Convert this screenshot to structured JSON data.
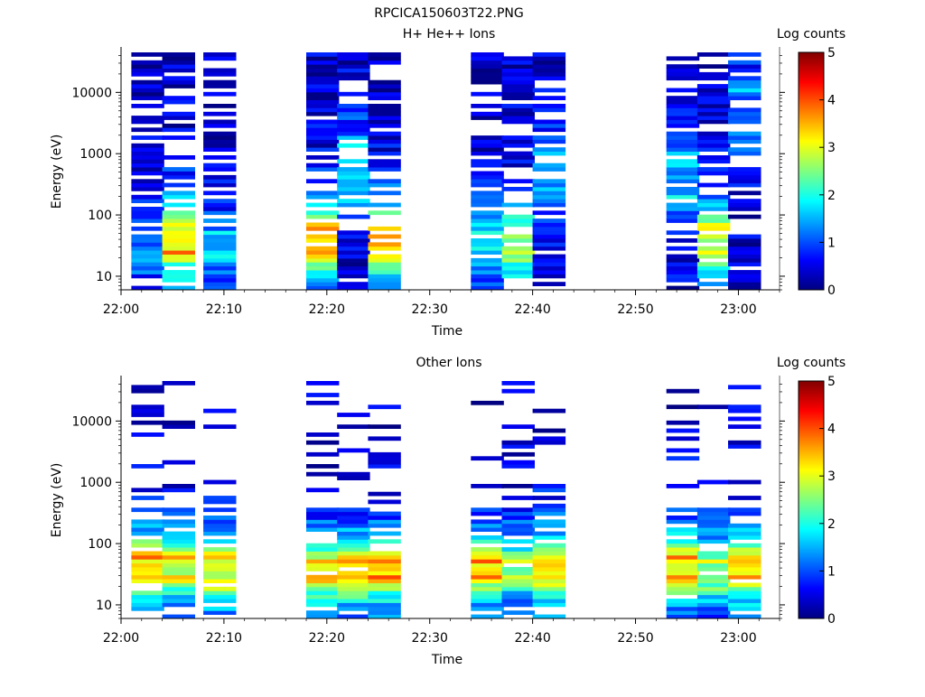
{
  "file_title": "RPCICA150603T22.PNG",
  "chart_data": [
    {
      "type": "heatmap",
      "title": "H+ He++ Ions",
      "xlabel": "Time",
      "ylabel": "Energy (eV)",
      "colorbar_label": "Log counts",
      "y_scale": "log",
      "ylim": [
        6,
        45000
      ],
      "xlim_minutes": [
        0,
        64
      ],
      "x_tick_labels": [
        "22:00",
        "22:10",
        "22:20",
        "22:30",
        "22:40",
        "22:50",
        "23:00"
      ],
      "y_tick_labels": [
        "10",
        "100",
        "1000",
        "10000"
      ],
      "y_tick_values": [
        10,
        100,
        1000,
        10000
      ],
      "colorbar_range": [
        0,
        5
      ],
      "colorbar_tick_labels": [
        "0",
        "1",
        "2",
        "3",
        "4",
        "5"
      ],
      "time_columns": [
        {
          "time": "22:01",
          "high_count_band_eV": [
            25,
            40
          ],
          "peak_log_counts": 1.3
        },
        {
          "time": "22:04",
          "high_count_band_eV": [
            25,
            70
          ],
          "peak_log_counts": 3.2
        },
        {
          "time": "22:08",
          "high_count_band_eV": [
            25,
            40
          ],
          "peak_log_counts": 1.5
        },
        {
          "time": "22:18",
          "high_count_band_eV": [
            25,
            60
          ],
          "peak_log_counts": 3.5
        },
        {
          "time": "22:21",
          "high_count_band_eV": [
            300,
            900
          ],
          "peak_log_counts": 1.8
        },
        {
          "time": "22:24",
          "high_count_band_eV": [
            25,
            50
          ],
          "peak_log_counts": 3.7
        },
        {
          "time": "22:34",
          "high_count_band_eV": [
            30,
            50
          ],
          "peak_log_counts": 1.8
        },
        {
          "time": "22:37",
          "high_count_band_eV": [
            25,
            50
          ],
          "peak_log_counts": 2.8
        },
        {
          "time": "22:40",
          "high_count_band_eV": [
            300,
            800
          ],
          "peak_log_counts": 1.6
        },
        {
          "time": "22:53",
          "high_count_band_eV": [
            200,
            600
          ],
          "peak_log_counts": 1.6
        },
        {
          "time": "22:56",
          "high_count_band_eV": [
            25,
            60
          ],
          "peak_log_counts": 3.0
        },
        {
          "time": "22:59",
          "high_count_band_eV": [
            3000,
            10000
          ],
          "peak_log_counts": 1.2
        }
      ]
    },
    {
      "type": "heatmap",
      "title": "Other Ions",
      "xlabel": "Time",
      "ylabel": "Energy (eV)",
      "colorbar_label": "Log counts",
      "y_scale": "log",
      "ylim": [
        6,
        45000
      ],
      "xlim_minutes": [
        0,
        64
      ],
      "x_tick_labels": [
        "22:00",
        "22:10",
        "22:20",
        "22:30",
        "22:40",
        "22:50",
        "23:00"
      ],
      "y_tick_labels": [
        "10",
        "100",
        "1000",
        "10000"
      ],
      "y_tick_values": [
        10,
        100,
        1000,
        10000
      ],
      "colorbar_range": [
        0,
        5
      ],
      "colorbar_tick_labels": [
        "0",
        "1",
        "2",
        "3",
        "4",
        "5"
      ],
      "time_columns": [
        {
          "time": "22:01",
          "high_count_band_eV": [
            30,
            60
          ],
          "peak_log_counts": 3.4
        },
        {
          "time": "22:04",
          "high_count_band_eV": [
            30,
            60
          ],
          "peak_log_counts": 3.0
        },
        {
          "time": "22:08",
          "high_count_band_eV": [
            25,
            60
          ],
          "peak_log_counts": 3.0
        },
        {
          "time": "22:18",
          "high_count_band_eV": [
            30,
            45
          ],
          "peak_log_counts": 3.4
        },
        {
          "time": "22:21",
          "high_count_band_eV": [
            30,
            45
          ],
          "peak_log_counts": 3.6
        },
        {
          "time": "22:24",
          "high_count_band_eV": [
            30,
            45
          ],
          "peak_log_counts": 3.6
        },
        {
          "time": "22:34",
          "high_count_band_eV": [
            30,
            50
          ],
          "peak_log_counts": 3.4
        },
        {
          "time": "22:37",
          "high_count_band_eV": [
            30,
            50
          ],
          "peak_log_counts": 2.5
        },
        {
          "time": "22:40",
          "high_count_band_eV": [
            30,
            50
          ],
          "peak_log_counts": 3.5
        },
        {
          "time": "22:53",
          "high_count_band_eV": [
            30,
            60
          ],
          "peak_log_counts": 3.2
        },
        {
          "time": "22:56",
          "high_count_band_eV": [
            25,
            50
          ],
          "peak_log_counts": 2.5
        },
        {
          "time": "22:59",
          "high_count_band_eV": [
            30,
            50
          ],
          "peak_log_counts": 3.4
        }
      ]
    }
  ]
}
